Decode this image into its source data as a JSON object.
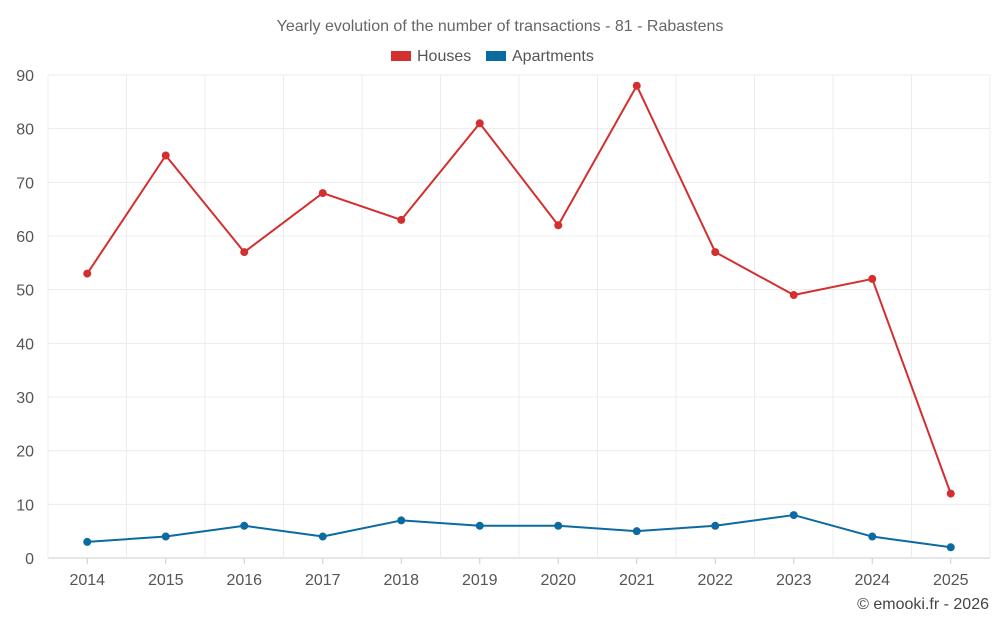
{
  "chart_data": {
    "type": "line",
    "title": "Yearly evolution of the number of transactions - 81 - Rabastens",
    "categories": [
      "2014",
      "2015",
      "2016",
      "2017",
      "2018",
      "2019",
      "2020",
      "2021",
      "2022",
      "2023",
      "2024",
      "2025"
    ],
    "series": [
      {
        "name": "Houses",
        "color": "#d32f2f",
        "values": [
          53,
          75,
          57,
          68,
          63,
          81,
          62,
          88,
          57,
          49,
          52,
          12
        ]
      },
      {
        "name": "Apartments",
        "color": "#0b6aa2",
        "values": [
          3,
          4,
          6,
          4,
          7,
          6,
          6,
          5,
          6,
          8,
          4,
          2
        ]
      }
    ],
    "ylim": [
      0,
      90
    ],
    "yticks": [
      0,
      10,
      20,
      30,
      40,
      50,
      60,
      70,
      80,
      90
    ],
    "grid": true,
    "legend_position": "top-center",
    "xlabel": "",
    "ylabel": ""
  },
  "credit": "© emooki.fr - 2026"
}
